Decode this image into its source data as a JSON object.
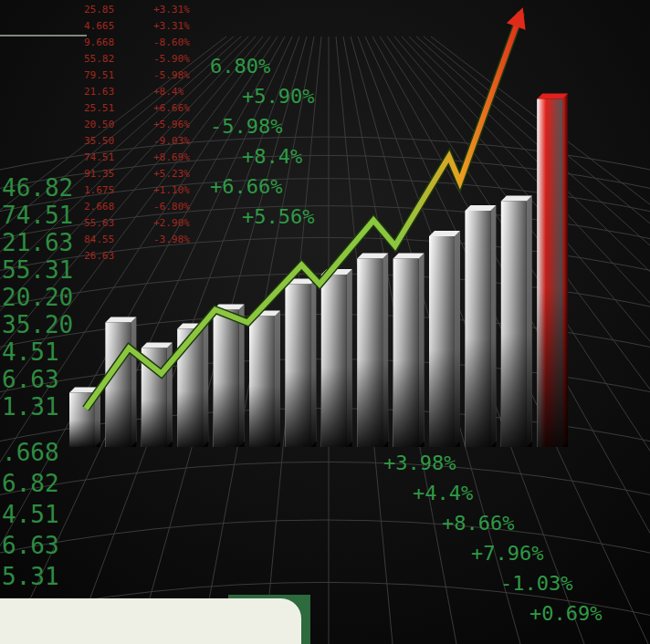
{
  "chart_data": {
    "type": "bar",
    "xlim": [
      0,
      15
    ],
    "ylim": [
      0,
      140
    ],
    "tick_labels": false,
    "grid": false,
    "series": [
      {
        "type": "bar",
        "color": "#c8c8c8",
        "x": [
          1,
          2,
          3,
          4,
          5,
          6,
          7,
          8,
          9,
          10,
          11,
          12,
          13
        ],
        "values": [
          17,
          39,
          31,
          37,
          43,
          41,
          51,
          54,
          59,
          59,
          66,
          74,
          77
        ]
      },
      {
        "type": "bar",
        "color": "#e3201a",
        "x": [
          14
        ],
        "values": [
          109
        ]
      },
      {
        "type": "line",
        "color": "#8cc63f",
        "marker": "arrow",
        "x": [
          1.1,
          2.3,
          3.2,
          4.7,
          5.6,
          7.1,
          7.6,
          9.1,
          9.7,
          11.2,
          11.5,
          13.2
        ],
        "values": [
          12,
          31,
          23,
          43,
          39,
          57,
          51,
          71,
          63,
          91,
          83,
          136
        ]
      }
    ],
    "annotations": {
      "red_values": [
        "25.85",
        "4.665",
        "9.668",
        "55.82",
        "79.51",
        "21.63",
        "25.51",
        "20.50",
        "35.50",
        "74.51",
        "91.35",
        "1.675",
        "2.668",
        "55.63",
        "84.55",
        "26.63"
      ],
      "red_changes": [
        "+3.31%",
        "+3.31%",
        "-8.60%",
        "-5.90%",
        "-5.98%",
        "+8.4%",
        "+6.66%",
        "+5.96%",
        "-9.03%",
        "+8.69%",
        "+5.23%",
        "+1.10%",
        "-6.80%",
        "+2.90%",
        "-3.98%"
      ],
      "top": [
        "6.80%",
        "+5.90%",
        "-5.98%",
        "+8.4%",
        "+6.66%",
        "+5.56%"
      ],
      "left": [
        "46.82",
        "74.51",
        "21.63",
        "55.31",
        "20.20",
        "35.20",
        "4.51",
        "6.63",
        "1.31"
      ],
      "bottom_left": [
        ".668",
        "6.82",
        "4.51",
        "6.63",
        "5.31"
      ],
      "bottom_right": [
        "+3.98%",
        "+4.4%",
        "+8.66%",
        "+7.96%",
        "-1.03%",
        "+0.69%"
      ]
    }
  }
}
